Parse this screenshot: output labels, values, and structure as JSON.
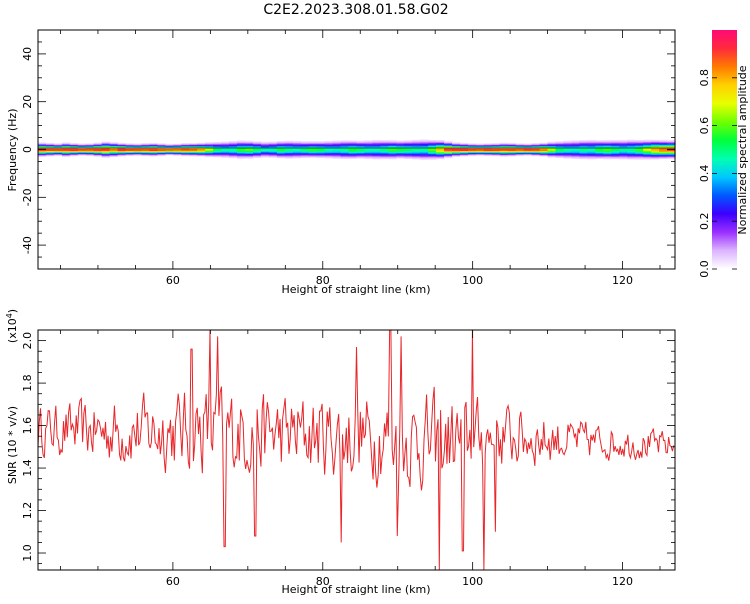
{
  "title": "C2E2.2023.308.01.58.G02",
  "chart_data": [
    {
      "type": "heatmap",
      "xlabel": "Height of straight line (km)",
      "ylabel": "Frequency (Hz)",
      "xlim": [
        42,
        127
      ],
      "ylim": [
        -50,
        50
      ],
      "x_ticks": [
        "60",
        "80",
        "100",
        "120"
      ],
      "y_ticks": [
        "40",
        "20",
        "0",
        "-20",
        "-40"
      ],
      "colorbar": {
        "label": "Normalized spectral amplitude",
        "range": [
          0,
          1
        ],
        "ticks": [
          "0.0",
          "0.2",
          "0.4",
          "0.6",
          "0.8"
        ],
        "colors": [
          "#ffffff",
          "#dcb4ff",
          "#9b30ff",
          "#3c00ff",
          "#0058ff",
          "#00c8ff",
          "#00ffb0",
          "#00ff3c",
          "#70ff00",
          "#e8ff00",
          "#ffd000",
          "#ff7a00",
          "#ff2a3c",
          "#ff0a78"
        ]
      },
      "band_centre_hz": 0,
      "band_halfwidth_hz": [
        3.0,
        2.8,
        2.6,
        3.0,
        2.7,
        2.5,
        2.6,
        2.9,
        3.4,
        3.2,
        2.8,
        2.6,
        2.5,
        2.7,
        2.8,
        2.6,
        2.4,
        2.5,
        2.7,
        2.8,
        3.0,
        3.3,
        3.6,
        3.8,
        4.0,
        4.1,
        4.0,
        3.9,
        3.7,
        3.8,
        4.0,
        4.2,
        4.1,
        3.9,
        3.8,
        3.9,
        4.1,
        4.3,
        4.4,
        4.3,
        4.2,
        4.4,
        4.6,
        4.5,
        4.3,
        4.2,
        4.4,
        4.6,
        4.8,
        4.5,
        4.2,
        3.5,
        3.0,
        2.8,
        2.6,
        2.5,
        2.6,
        2.7,
        2.9,
        2.8,
        2.6,
        2.5,
        2.7,
        3.0,
        3.5,
        3.9,
        4.2,
        4.4,
        4.5,
        4.6,
        4.4,
        4.3,
        4.5,
        4.6,
        4.7,
        4.5,
        4.4,
        4.3,
        4.1,
        4.0
      ],
      "core_amplitude": [
        1.0,
        0.98,
        0.97,
        0.99,
        1.0,
        0.98,
        0.97,
        0.99,
        0.96,
        0.9,
        1.0,
        1.0,
        0.98,
        0.97,
        0.99,
        0.96,
        0.92,
        0.94,
        0.97,
        0.93,
        0.85,
        0.7,
        0.55,
        0.5,
        0.52,
        0.6,
        0.62,
        0.55,
        0.48,
        0.5,
        0.58,
        0.52,
        0.5,
        0.54,
        0.6,
        0.56,
        0.5,
        0.48,
        0.52,
        0.58,
        0.55,
        0.5,
        0.48,
        0.53,
        0.6,
        0.58,
        0.54,
        0.52,
        0.5,
        0.62,
        0.8,
        0.97,
        1.0,
        1.0,
        0.98,
        0.99,
        1.0,
        0.98,
        0.97,
        0.99,
        0.98,
        1.0,
        0.97,
        0.9,
        0.7,
        0.55,
        0.5,
        0.48,
        0.52,
        0.5,
        0.58,
        0.62,
        0.55,
        0.5,
        0.52,
        0.6,
        0.72,
        0.85,
        0.92,
        0.95
      ]
    },
    {
      "type": "line",
      "xlabel": "Height of straight line (km)",
      "ylabel": "SNR (10 * v/v)",
      "scale_label": "(x10",
      "scale_exp": "4",
      "scale_close": ")",
      "xlim": [
        42,
        127
      ],
      "ylim": [
        0.92,
        2.05
      ],
      "x_ticks": [
        "60",
        "80",
        "100",
        "120"
      ],
      "y_ticks": [
        "2.0",
        "1.8",
        "1.6",
        "1.4",
        "1.2",
        "1.0"
      ],
      "line_color": "#e8262a",
      "segment_means": [
        [
          42,
          1.58
        ],
        [
          55,
          1.57
        ],
        [
          65,
          1.58
        ],
        [
          75,
          1.56
        ],
        [
          85,
          1.55
        ],
        [
          95,
          1.52
        ],
        [
          105,
          1.55
        ],
        [
          112,
          1.53
        ],
        [
          120,
          1.52
        ],
        [
          127,
          1.5
        ]
      ],
      "segment_amplitude": [
        [
          42,
          0.15
        ],
        [
          55,
          0.22
        ],
        [
          65,
          0.28
        ],
        [
          75,
          0.25
        ],
        [
          85,
          0.27
        ],
        [
          95,
          0.3
        ],
        [
          105,
          0.2
        ],
        [
          112,
          0.14
        ],
        [
          120,
          0.1
        ],
        [
          127,
          0.09
        ]
      ],
      "sample_step_km": 0.17,
      "peaks": [
        [
          65.0,
          2.05
        ],
        [
          89.0,
          2.05
        ],
        [
          100.0,
          2.05
        ],
        [
          66.0,
          2.02
        ],
        [
          90.5,
          2.02
        ],
        [
          62.5,
          1.96
        ],
        [
          84.5,
          1.97
        ]
      ],
      "troughs": [
        [
          95.6,
          0.92
        ],
        [
          101.5,
          0.92
        ],
        [
          66.9,
          1.03
        ],
        [
          71.0,
          1.08
        ],
        [
          82.5,
          1.05
        ],
        [
          90.0,
          1.08
        ],
        [
          98.7,
          1.01
        ],
        [
          103.0,
          1.1
        ]
      ]
    }
  ]
}
